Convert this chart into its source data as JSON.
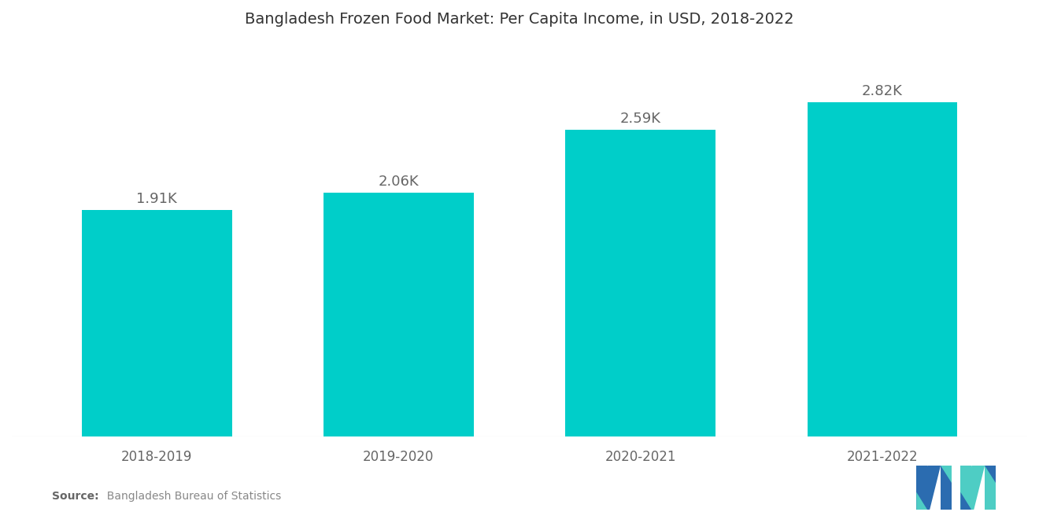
{
  "title": "Bangladesh Frozen Food Market: Per Capita Income, in USD, 2018-2022",
  "categories": [
    "2018-2019",
    "2019-2020",
    "2020-2021",
    "2021-2022"
  ],
  "values": [
    1910,
    2060,
    2590,
    2820
  ],
  "labels": [
    "1.91K",
    "2.06K",
    "2.59K",
    "2.82K"
  ],
  "bar_color": "#00CEC9",
  "background_color": "#FFFFFF",
  "title_fontsize": 14,
  "label_fontsize": 13,
  "tick_fontsize": 12,
  "source_bold": "Source:",
  "source_normal": "  Bangladesh Bureau of Statistics",
  "ylim": [
    0,
    3300
  ],
  "bar_width": 0.62,
  "logo_teal": "#4ECDC4",
  "logo_blue": "#2B6CB0"
}
